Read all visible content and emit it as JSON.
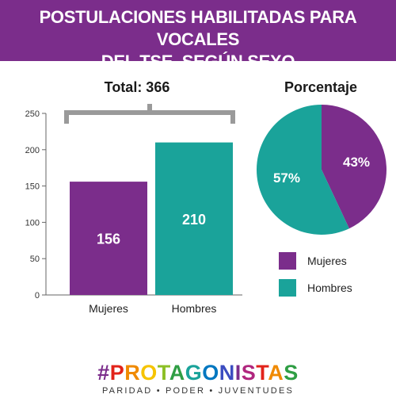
{
  "header": {
    "title_line1": "POSTULACIONES HABILITADAS PARA VOCALES",
    "title_line2": "DEL TSE, SEGÚN SEXO"
  },
  "total_label": "Total: 366",
  "percent_title": "Porcentaje",
  "colors": {
    "banner": "#7b2d8b",
    "mujeres": "#7b2d8b",
    "hombres": "#1aa39a"
  },
  "chart_data": [
    {
      "type": "bar",
      "categories": [
        "Mujeres",
        "Hombres"
      ],
      "values": [
        156,
        210
      ],
      "value_labels": [
        "156",
        "210"
      ],
      "colors": [
        "#7b2d8b",
        "#1aa39a"
      ],
      "yticks": [
        "0",
        "50",
        "100",
        "150",
        "200",
        "250"
      ],
      "ylim": [
        0,
        250
      ],
      "grid": false
    },
    {
      "type": "pie",
      "labels": [
        "Mujeres",
        "Hombres"
      ],
      "values": [
        43,
        57
      ],
      "value_labels": [
        "43%",
        "57%"
      ],
      "colors": [
        "#7b2d8b",
        "#1aa39a"
      ],
      "legend": [
        "Mujeres",
        "Hombres"
      ],
      "legend_position": "bottom"
    }
  ],
  "logo": {
    "segments": [
      {
        "text": "#",
        "color": "#7b2d8b"
      },
      {
        "text": "P",
        "color": "#e2231a"
      },
      {
        "text": "R",
        "color": "#f08a00"
      },
      {
        "text": "O",
        "color": "#f6c400"
      },
      {
        "text": "T",
        "color": "#8cbf26"
      },
      {
        "text": "A",
        "color": "#2f9e44"
      },
      {
        "text": "G",
        "color": "#1aa39a"
      },
      {
        "text": "O",
        "color": "#0077c0"
      },
      {
        "text": "N",
        "color": "#3b4cc0"
      },
      {
        "text": "I",
        "color": "#7b2d8b"
      },
      {
        "text": "S",
        "color": "#b0267e"
      },
      {
        "text": "T",
        "color": "#e2231a"
      },
      {
        "text": "A",
        "color": "#f08a00"
      },
      {
        "text": "S",
        "color": "#2f9e44"
      }
    ],
    "tagline": "PARIDAD • PODER • JUVENTUDES"
  }
}
